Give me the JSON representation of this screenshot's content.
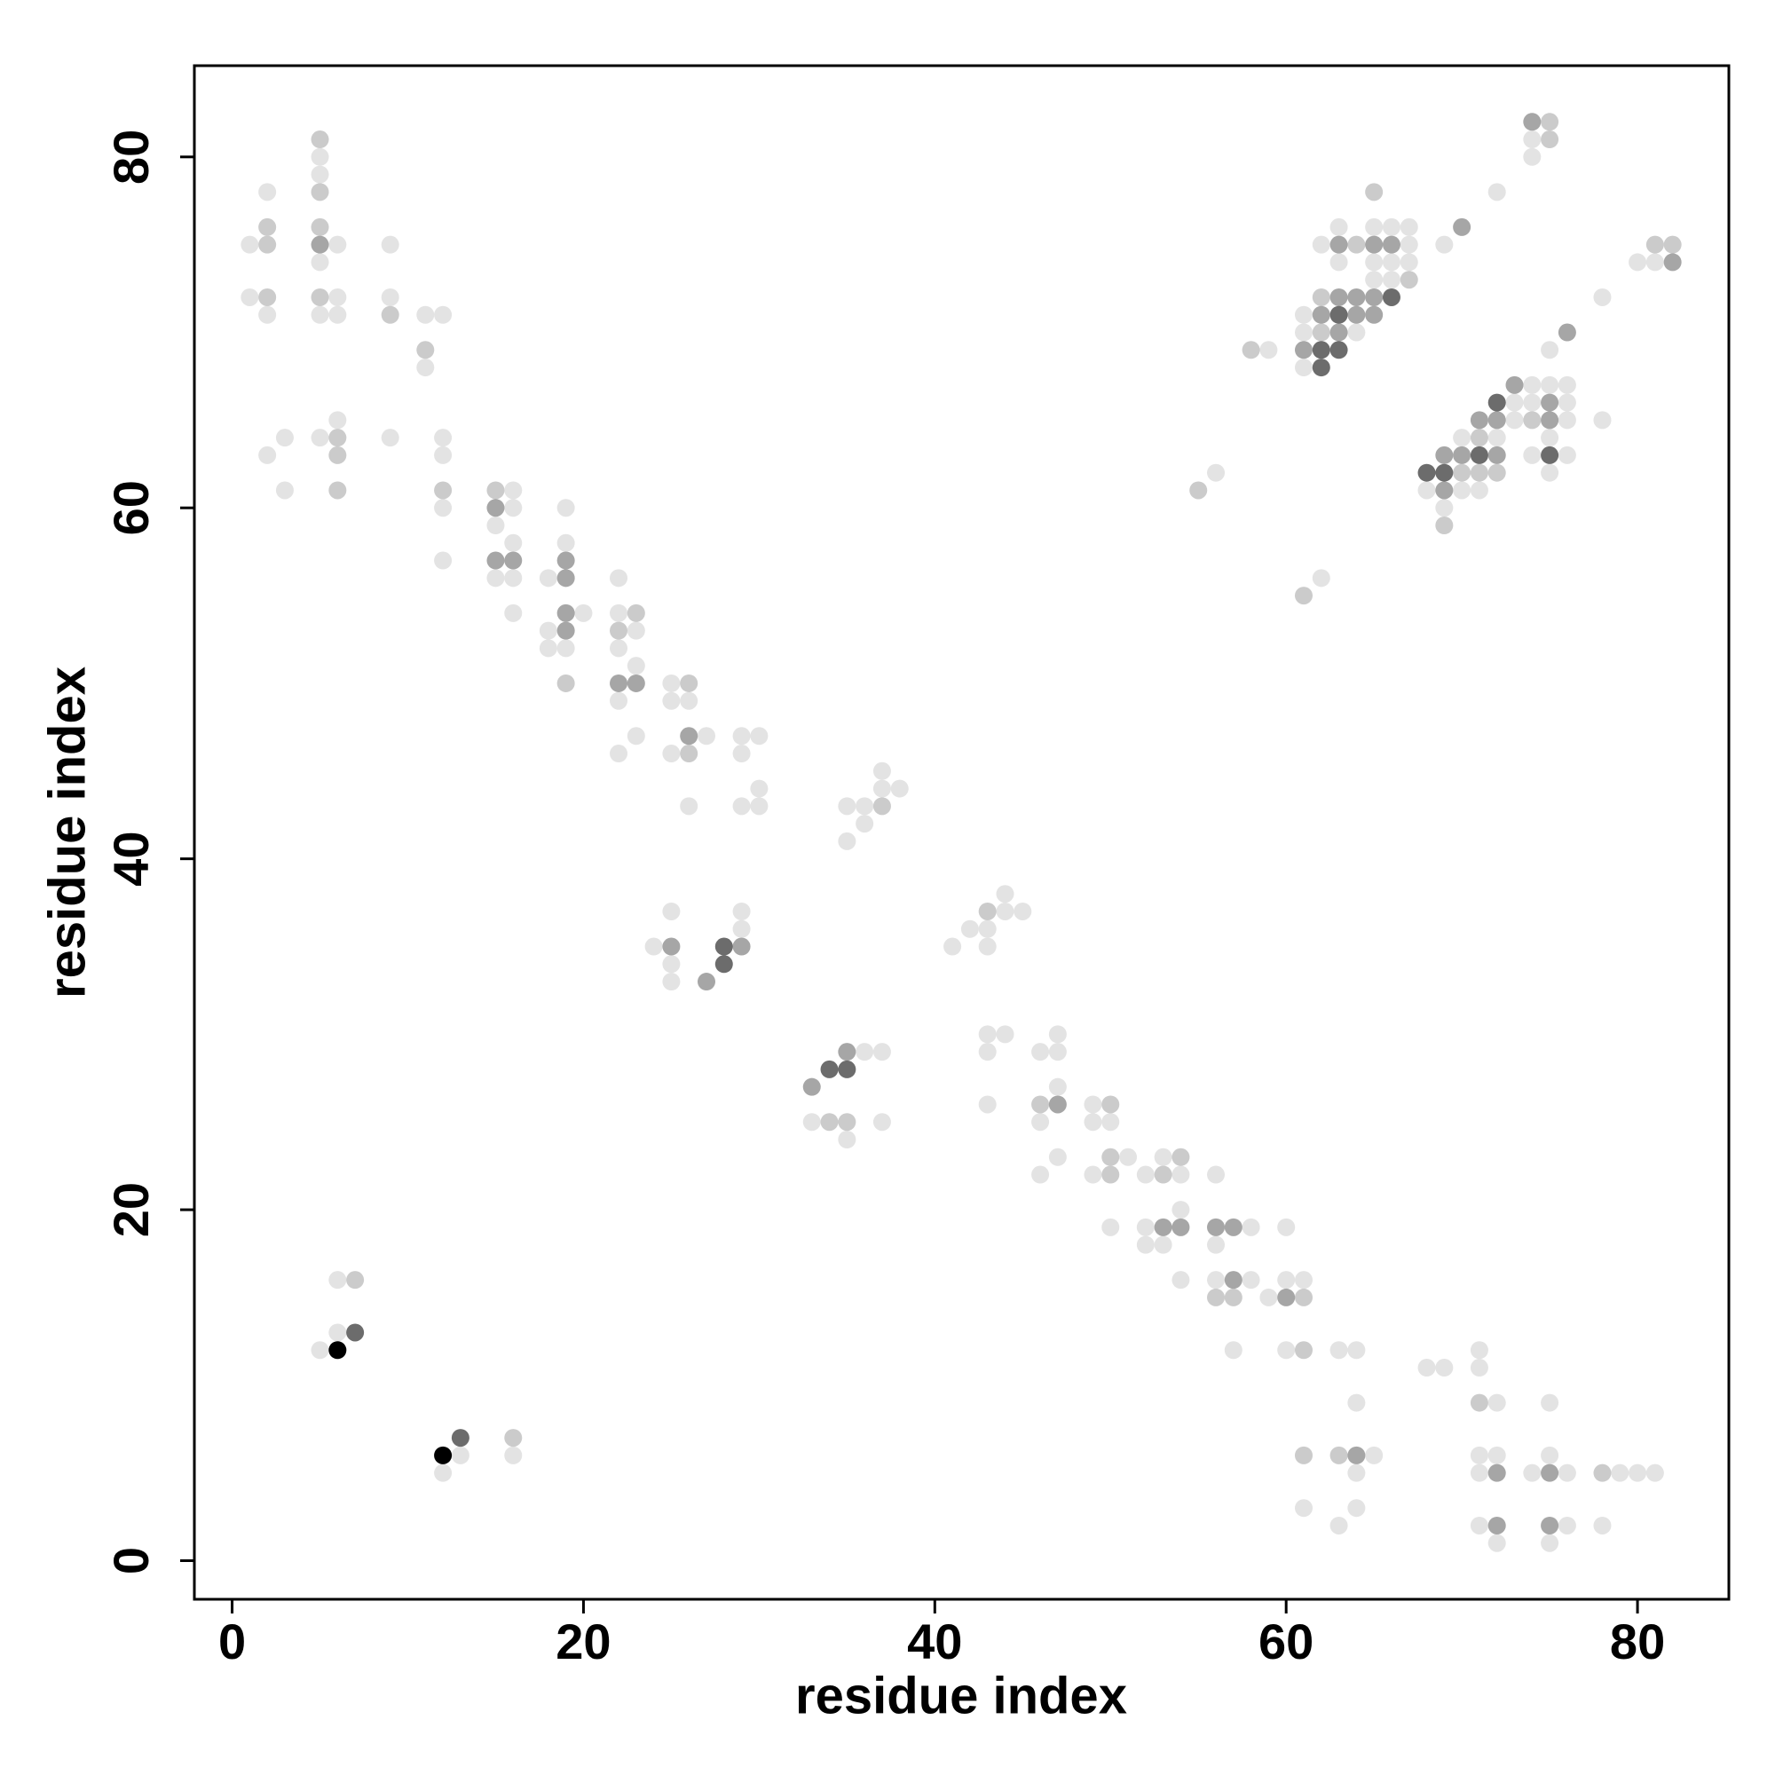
{
  "chart_data": {
    "type": "scatter",
    "x_label": "residue index",
    "y_label": "residue index",
    "xlim": [
      -2.15,
      85.2
    ],
    "ylim": [
      -2.2,
      85.2
    ],
    "xticks": [
      0,
      20,
      40,
      60,
      80
    ],
    "yticks": [
      0,
      20,
      40,
      60,
      80
    ],
    "series": [
      {
        "color": "#e3e3e3",
        "x": [
          1,
          1,
          2,
          2,
          3,
          2,
          3,
          5,
          5,
          5,
          5,
          5,
          6,
          6,
          6,
          6,
          9,
          9,
          9,
          11,
          11,
          12,
          12,
          12,
          12,
          12,
          15,
          15,
          16,
          16,
          16,
          16,
          16,
          18,
          18,
          18,
          19,
          19,
          19,
          20,
          22,
          22,
          22,
          22,
          22,
          23,
          23,
          23,
          25,
          25,
          25,
          26,
          26,
          27,
          29,
          29,
          29,
          30,
          30,
          30,
          35,
          35,
          36,
          36,
          37,
          37,
          38,
          24,
          25,
          25,
          25,
          29,
          29,
          41,
          42,
          43,
          43,
          43,
          43,
          43,
          44,
          44,
          44,
          45,
          33,
          35,
          36,
          37,
          37,
          46,
          46,
          46,
          47,
          47,
          47,
          47,
          49,
          49,
          49,
          50,
          50,
          51,
          52,
          52,
          52,
          53,
          53,
          54,
          54,
          54,
          56,
          56,
          56,
          57,
          58,
          58,
          59,
          60,
          60,
          60,
          61,
          61,
          63,
          63,
          64,
          64,
          64,
          64,
          65,
          68,
          69,
          71,
          71,
          71,
          71,
          71,
          72,
          72,
          72,
          74,
          75,
          75,
          75,
          76,
          76,
          78,
          79,
          80,
          81,
          5,
          6,
          6,
          12,
          13,
          16,
          56,
          62,
          59,
          61,
          61,
          61,
          62,
          63,
          63,
          64,
          65,
          65,
          65,
          66,
          66,
          66,
          67,
          67,
          67,
          69,
          72,
          74,
          74,
          78,
          80,
          81,
          68,
          69,
          70,
          70,
          71,
          72,
          73,
          73,
          74,
          74,
          74,
          75,
          75,
          75,
          75,
          76,
          76,
          76,
          76,
          78
        ],
        "y": [
          75,
          72,
          78,
          71,
          64,
          63,
          61,
          80,
          79,
          74,
          71,
          64,
          75,
          72,
          71,
          65,
          75,
          72,
          64,
          71,
          68,
          71,
          64,
          63,
          60,
          57,
          59,
          56,
          61,
          60,
          58,
          56,
          54,
          56,
          53,
          52,
          60,
          58,
          52,
          54,
          56,
          54,
          52,
          49,
          46,
          53,
          51,
          47,
          50,
          49,
          46,
          49,
          43,
          47,
          47,
          46,
          43,
          47,
          44,
          43,
          43,
          41,
          43,
          42,
          45,
          44,
          44,
          35,
          37,
          34,
          33,
          37,
          36,
          35,
          36,
          36,
          35,
          30,
          29,
          26,
          38,
          37,
          30,
          37,
          25,
          24,
          29,
          29,
          25,
          29,
          25,
          22,
          30,
          29,
          27,
          23,
          26,
          25,
          22,
          25,
          19,
          23,
          22,
          19,
          18,
          23,
          18,
          22,
          20,
          16,
          22,
          18,
          16,
          12,
          19,
          16,
          15,
          19,
          16,
          12,
          16,
          3,
          12,
          2,
          12,
          9,
          5,
          3,
          6,
          11,
          11,
          12,
          11,
          6,
          5,
          2,
          9,
          6,
          1,
          5,
          9,
          6,
          1,
          5,
          2,
          2,
          5,
          5,
          5,
          12,
          16,
          13,
          5,
          6,
          6,
          62,
          56,
          69,
          71,
          70,
          68,
          75,
          76,
          74,
          70,
          76,
          74,
          73,
          76,
          74,
          73,
          76,
          75,
          74,
          75,
          78,
          81,
          80,
          72,
          74,
          74,
          61,
          60,
          64,
          61,
          61,
          64,
          66,
          65,
          67,
          66,
          63,
          69,
          67,
          64,
          62,
          67,
          66,
          65,
          63,
          65
        ]
      },
      {
        "color": "#cbcbcb",
        "x": [
          2,
          2,
          2,
          5,
          5,
          5,
          5,
          6,
          6,
          6,
          9,
          11,
          12,
          15,
          19,
          22,
          23,
          26,
          26,
          37,
          43,
          34,
          35,
          46,
          50,
          50,
          50,
          53,
          54,
          56,
          57,
          61,
          61,
          61,
          63,
          71,
          78,
          7,
          16,
          55,
          61,
          58,
          62,
          62,
          64,
          67,
          75,
          75,
          81,
          82,
          69,
          70,
          71,
          71,
          72,
          74,
          65
        ],
        "y": [
          76,
          75,
          72,
          81,
          78,
          76,
          72,
          64,
          63,
          61,
          71,
          69,
          61,
          61,
          50,
          53,
          54,
          50,
          46,
          43,
          37,
          25,
          25,
          26,
          26,
          23,
          22,
          22,
          23,
          15,
          15,
          15,
          12,
          6,
          6,
          9,
          5,
          16,
          7,
          61,
          55,
          69,
          72,
          70,
          75,
          73,
          82,
          81,
          75,
          75,
          59,
          62,
          64,
          62,
          62,
          65,
          78
        ]
      },
      {
        "color": "#a6a6a6",
        "x": [
          5,
          15,
          15,
          16,
          19,
          19,
          19,
          19,
          22,
          23,
          26,
          25,
          27,
          29,
          33,
          35,
          47,
          53,
          54,
          56,
          57,
          57,
          60,
          64,
          72,
          72,
          75,
          75,
          61,
          62,
          63,
          63,
          63,
          64,
          64,
          65,
          65,
          65,
          66,
          70,
          74,
          82,
          69,
          69,
          70,
          71,
          72,
          72,
          73,
          75,
          75,
          76
        ],
        "y": [
          75,
          60,
          57,
          57,
          57,
          56,
          54,
          53,
          50,
          50,
          47,
          35,
          33,
          35,
          27,
          29,
          26,
          19,
          19,
          19,
          19,
          16,
          15,
          6,
          5,
          2,
          5,
          2,
          69,
          71,
          75,
          72,
          70,
          72,
          71,
          75,
          72,
          71,
          75,
          76,
          82,
          74,
          63,
          61,
          63,
          65,
          65,
          63,
          67,
          66,
          65,
          70
        ]
      },
      {
        "color": "#6c6c6c",
        "x": [
          7,
          13,
          28,
          28,
          34,
          35,
          62,
          62,
          63,
          63,
          66,
          68,
          69,
          71,
          72,
          75
        ],
        "y": [
          13,
          7,
          35,
          34,
          28,
          28,
          69,
          68,
          71,
          69,
          72,
          62,
          62,
          63,
          66,
          63
        ]
      },
      {
        "color": "#000000",
        "x": [
          6,
          12
        ],
        "y": [
          12,
          6
        ]
      }
    ]
  }
}
